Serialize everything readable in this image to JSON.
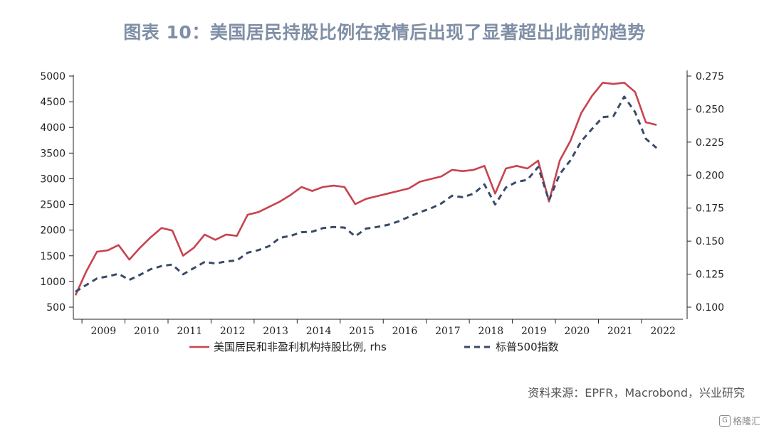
{
  "title": "图表 10：美国居民持股比例在疫情后出现了显著超出此前的趋势",
  "source": "资料来源：EPFR，Macrobond，兴业研究",
  "watermark": "格隆汇",
  "chart_data": {
    "type": "line",
    "x_ticks": [
      "2009",
      "2010",
      "2011",
      "2012",
      "2013",
      "2014",
      "2015",
      "2016",
      "2017",
      "2018",
      "2019",
      "2020",
      "2021",
      "2022"
    ],
    "y_left": {
      "ticks": [
        500,
        1000,
        1500,
        2000,
        2500,
        3000,
        3500,
        4000,
        4500,
        5000
      ],
      "range": [
        500,
        5000
      ]
    },
    "y_right": {
      "ticks": [
        "0.100",
        "0.125",
        "0.150",
        "0.175",
        "0.200",
        "0.225",
        "0.250",
        "0.275"
      ],
      "range": [
        0.1,
        0.275
      ]
    },
    "grid": false,
    "legend_position": "bottom",
    "series": [
      {
        "name": "美国居民和非盈利机构持股比例, rhs",
        "axis": "right",
        "style": "solid",
        "color": "#c8434f",
        "x": [
          2008.75,
          2009.0,
          2009.25,
          2009.5,
          2009.75,
          2010.0,
          2010.25,
          2010.5,
          2010.75,
          2011.0,
          2011.25,
          2011.5,
          2011.75,
          2012.0,
          2012.25,
          2012.5,
          2012.75,
          2013.0,
          2013.25,
          2013.5,
          2013.75,
          2014.0,
          2014.25,
          2014.5,
          2014.75,
          2015.0,
          2015.25,
          2015.5,
          2015.75,
          2016.0,
          2016.25,
          2016.5,
          2016.75,
          2017.0,
          2017.25,
          2017.5,
          2017.75,
          2018.0,
          2018.25,
          2018.5,
          2018.75,
          2019.0,
          2019.25,
          2019.5,
          2019.75,
          2020.0,
          2020.25,
          2020.5,
          2020.75,
          2021.0,
          2021.25,
          2021.5,
          2021.75,
          2022.0,
          2022.25
        ],
        "y": [
          0.109,
          0.127,
          0.142,
          0.143,
          0.147,
          0.136,
          0.145,
          0.153,
          0.16,
          0.158,
          0.139,
          0.145,
          0.155,
          0.151,
          0.155,
          0.154,
          0.17,
          0.172,
          0.176,
          0.18,
          0.185,
          0.191,
          0.188,
          0.191,
          0.192,
          0.191,
          0.178,
          0.182,
          0.184,
          0.186,
          0.188,
          0.19,
          0.195,
          0.197,
          0.199,
          0.204,
          0.203,
          0.204,
          0.207,
          0.186,
          0.205,
          0.207,
          0.205,
          0.211,
          0.18,
          0.211,
          0.226,
          0.247,
          0.26,
          0.27,
          0.269,
          0.27,
          0.263,
          0.24,
          0.238
        ]
      },
      {
        "name": "标普500指数",
        "axis": "left",
        "style": "dashed",
        "color": "#3a4a68",
        "x": [
          2008.75,
          2009.0,
          2009.25,
          2009.5,
          2009.75,
          2010.0,
          2010.25,
          2010.5,
          2010.75,
          2011.0,
          2011.25,
          2011.5,
          2011.75,
          2012.0,
          2012.25,
          2012.5,
          2012.75,
          2013.0,
          2013.25,
          2013.5,
          2013.75,
          2014.0,
          2014.25,
          2014.5,
          2014.75,
          2015.0,
          2015.25,
          2015.5,
          2015.75,
          2016.0,
          2016.25,
          2016.5,
          2016.75,
          2017.0,
          2017.25,
          2017.5,
          2017.75,
          2018.0,
          2018.25,
          2018.5,
          2018.75,
          2019.0,
          2019.25,
          2019.5,
          2019.75,
          2020.0,
          2020.25,
          2020.5,
          2020.75,
          2021.0,
          2021.25,
          2021.5,
          2021.75,
          2022.0,
          2022.25
        ],
        "y": [
          800,
          930,
          1060,
          1100,
          1150,
          1030,
          1130,
          1240,
          1300,
          1330,
          1140,
          1260,
          1380,
          1350,
          1390,
          1410,
          1560,
          1610,
          1690,
          1850,
          1890,
          1960,
          1970,
          2040,
          2060,
          2050,
          1880,
          2030,
          2060,
          2100,
          2170,
          2260,
          2350,
          2420,
          2520,
          2670,
          2640,
          2710,
          2890,
          2500,
          2830,
          2940,
          2980,
          3230,
          2580,
          3090,
          3360,
          3730,
          3970,
          4200,
          4220,
          4600,
          4300,
          3780,
          3600
        ]
      }
    ]
  }
}
